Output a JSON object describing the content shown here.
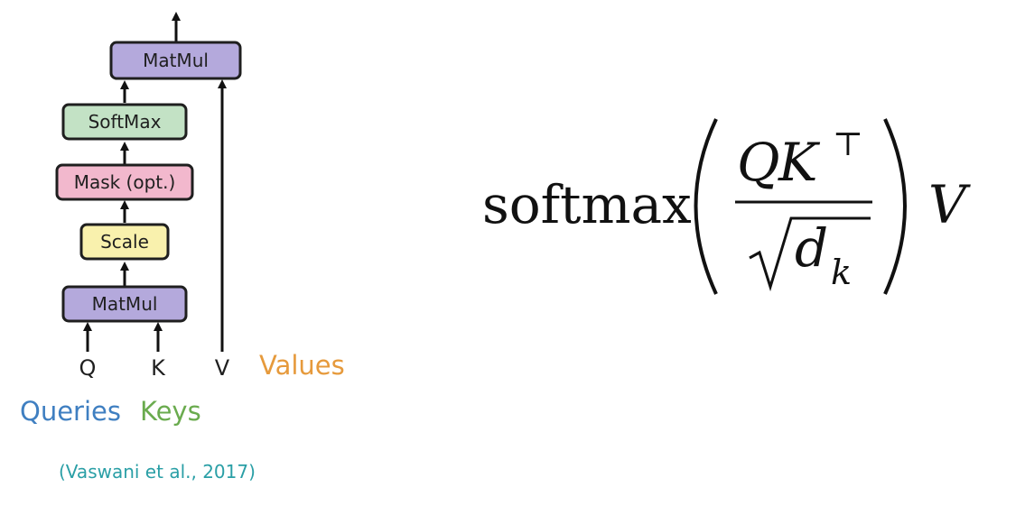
{
  "diagram": {
    "blocks": [
      {
        "id": "matmul_top",
        "label": "MatMul",
        "color": "#b4a9dc"
      },
      {
        "id": "softmax",
        "label": "SoftMax",
        "color": "#c3e2c5"
      },
      {
        "id": "mask",
        "label": "Mask (opt.)",
        "color": "#f2b8cd"
      },
      {
        "id": "scale",
        "label": "Scale",
        "color": "#f9f1ad"
      },
      {
        "id": "matmul_bottom",
        "label": "MatMul",
        "color": "#b4a9dc"
      }
    ],
    "inputs": {
      "q": "Q",
      "k": "K",
      "v": "V"
    },
    "legend": {
      "queries": {
        "label": "Queries",
        "color": "#3f7fc1"
      },
      "keys": {
        "label": "Keys",
        "color": "#6aab4e"
      },
      "values": {
        "label": "Values",
        "color": "#e69a3c"
      }
    },
    "citation": {
      "text": "(Vaswani et al., 2017)",
      "color": "#2a9fa6"
    }
  },
  "formula": {
    "function": "softmax",
    "numerator_q": "Q",
    "numerator_k": "K",
    "transpose": "⊤",
    "denominator_d": "d",
    "denominator_sub": "k",
    "multiplier": "V"
  }
}
